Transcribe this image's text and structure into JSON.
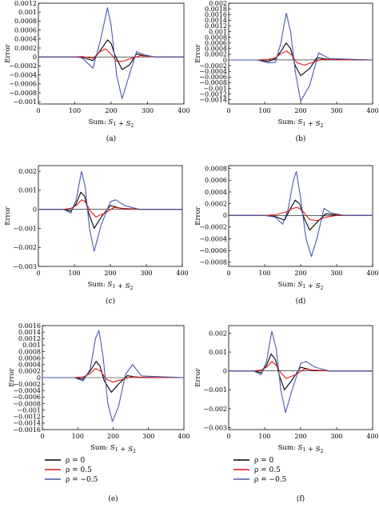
{
  "legend_entries": [
    {
      "label": "ρ = 0",
      "color": "#000000"
    },
    {
      "label": "ρ = 0.5",
      "color": "#e41a1c"
    },
    {
      "label": "ρ = −0.5",
      "color": "#4a5aa8"
    }
  ],
  "chart_data": [
    {
      "type": "line",
      "panel": "(a)",
      "xlabel": "Sum: S1 + S2",
      "ylabel": "Error",
      "xlim": [
        0,
        400
      ],
      "ylim": [
        -0.00105,
        0.0012
      ],
      "xticks": [
        0,
        100,
        200,
        300,
        400
      ],
      "yticks": [
        -0.001,
        -0.0008,
        -0.0006,
        -0.0004,
        -0.0002,
        0,
        0.0002,
        0.0004,
        0.0006,
        0.0008,
        0.001,
        0.0012
      ],
      "ytick_labels": [
        "−0.001",
        "−0.0008",
        "−0.0006",
        "−0.0004",
        "−0.0002",
        "0",
        "0.0002",
        "0.0004",
        "0.0006",
        "0.0008",
        "0.001",
        "0.0012"
      ],
      "grid": false,
      "series": [
        {
          "name": "ρ = 0",
          "color": "#000000",
          "x": [
            0,
            100,
            120,
            150,
            170,
            190,
            200,
            210,
            230,
            250,
            270,
            290,
            320,
            400
          ],
          "y": [
            0,
            0,
            -1e-05,
            -8e-05,
            0.00014,
            0.00038,
            0.0003,
            5e-05,
            -0.00028,
            -0.00018,
            7e-05,
            3e-05,
            0.0,
            0
          ]
        },
        {
          "name": "ρ = 0.5",
          "color": "#e41a1c",
          "x": [
            0,
            100,
            120,
            150,
            170,
            185,
            200,
            215,
            235,
            260,
            280,
            320,
            400
          ],
          "y": [
            0,
            0,
            1e-05,
            -3e-05,
            0.00012,
            0.00018,
            6e-05,
            -0.0001,
            -9e-05,
            -2e-05,
            3e-05,
            0.0,
            0
          ]
        },
        {
          "name": "ρ = −0.5",
          "color": "#4a5aa8",
          "x": [
            0,
            100,
            120,
            150,
            170,
            190,
            200,
            215,
            230,
            250,
            270,
            290,
            320,
            400
          ],
          "y": [
            0,
            0,
            -2e-05,
            -0.00025,
            0.00035,
            0.0011,
            0.0007,
            -0.0004,
            -0.00093,
            -0.0004,
            0.00012,
            5e-05,
            0.0,
            0
          ]
        }
      ]
    },
    {
      "type": "line",
      "panel": "(b)",
      "xlabel": "Sum: S1 + S2",
      "ylabel": "Error",
      "xlim": [
        0,
        400
      ],
      "ylim": [
        -0.00155,
        0.002
      ],
      "xticks": [
        0,
        100,
        200,
        300,
        400
      ],
      "yticks": [
        -0.0014,
        -0.0012,
        -0.001,
        -0.0008,
        -0.0006,
        -0.0004,
        -0.0002,
        0,
        0.0002,
        0.0004,
        0.0006,
        0.0008,
        0.001,
        0.0012,
        0.0014,
        0.0016,
        0.0018,
        0.002
      ],
      "ytick_labels": [
        "−0.0014",
        "−0.0012",
        "−0.001",
        "−0.0008",
        "−0.0006",
        "−0.0004",
        "−0.0002",
        "0",
        "0.0002",
        "0.0004",
        "0.0006",
        "0.0008",
        "0.001",
        "0.0012",
        "0.0014",
        "0.0016",
        "0.0018",
        "0.002"
      ],
      "grid": false,
      "series": [
        {
          "name": "ρ = 0",
          "color": "#000000",
          "x": [
            0,
            80,
            110,
            130,
            145,
            160,
            172,
            185,
            200,
            225,
            245,
            280,
            400
          ],
          "y": [
            0,
            0,
            -5e-05,
            5e-05,
            0.0003,
            0.0006,
            0.0004,
            -0.0002,
            -0.00055,
            -0.0003,
            8e-05,
            2e-05,
            0
          ]
        },
        {
          "name": "ρ = 0.5",
          "color": "#e41a1c",
          "x": [
            0,
            80,
            110,
            130,
            145,
            160,
            175,
            190,
            210,
            235,
            260,
            300,
            400
          ],
          "y": [
            0,
            0,
            2e-05,
            8e-05,
            0.00022,
            0.00032,
            0.00018,
            -0.0001,
            -0.00018,
            -8e-05,
            3e-05,
            1e-05,
            0
          ]
        },
        {
          "name": "ρ = −0.5",
          "color": "#4a5aa8",
          "x": [
            0,
            80,
            110,
            130,
            145,
            160,
            172,
            185,
            200,
            225,
            250,
            280,
            400
          ],
          "y": [
            0,
            0,
            -0.0001,
            -8e-05,
            0.0006,
            0.00165,
            0.001,
            -0.0004,
            -0.00145,
            -0.0009,
            0.00025,
            5e-05,
            0
          ]
        }
      ]
    },
    {
      "type": "line",
      "panel": "(c)",
      "xlabel": "Sum: S1 + S2",
      "ylabel": "Error",
      "xlim": [
        0,
        400
      ],
      "ylim": [
        -0.003,
        0.0023
      ],
      "xticks": [
        0,
        100,
        200,
        300,
        400
      ],
      "yticks": [
        -0.003,
        -0.002,
        -0.001,
        0,
        0.001,
        0.002
      ],
      "ytick_labels": [
        "−0.003",
        "−0.002",
        "−0.001",
        "0",
        "0.001",
        "0.002"
      ],
      "grid": false,
      "series": [
        {
          "name": "ρ = 0",
          "color": "#000000",
          "x": [
            0,
            70,
            90,
            105,
            118,
            128,
            140,
            155,
            175,
            200,
            230,
            280,
            400
          ],
          "y": [
            0,
            0,
            -0.0001,
            0.0003,
            0.0009,
            0.0007,
            -0.0002,
            -0.001,
            -0.0004,
            0.0002,
            5e-05,
            0.0,
            0
          ]
        },
        {
          "name": "ρ = 0.5",
          "color": "#e41a1c",
          "x": [
            0,
            70,
            90,
            105,
            120,
            130,
            145,
            160,
            185,
            210,
            240,
            290,
            400
          ],
          "y": [
            0,
            0,
            5e-05,
            0.0002,
            0.0005,
            0.0004,
            -0.0001,
            -0.0004,
            -0.0002,
            0.0001,
            4e-05,
            0.0,
            0
          ]
        },
        {
          "name": "ρ = −0.5",
          "color": "#4a5aa8",
          "x": [
            0,
            70,
            90,
            105,
            120,
            130,
            142,
            155,
            175,
            200,
            215,
            240,
            280,
            400
          ],
          "y": [
            0,
            0,
            -0.0002,
            0.0005,
            0.002,
            0.0012,
            -0.001,
            -0.0022,
            -0.0008,
            0.0004,
            0.0005,
            0.0002,
            0.0,
            0
          ]
        }
      ]
    },
    {
      "type": "line",
      "panel": "(d)",
      "xlabel": "Sum: S1 + S2",
      "ylabel": "Error",
      "xlim": [
        0,
        400
      ],
      "ylim": [
        -0.00087,
        0.00085
      ],
      "xticks": [
        0,
        100,
        200,
        300,
        400
      ],
      "yticks": [
        -0.0008,
        -0.0006,
        -0.0004,
        -0.0002,
        0,
        0.0002,
        0.0004,
        0.0006,
        0.0008
      ],
      "ytick_labels": [
        "−0.0008",
        "−0.0006",
        "−0.0004",
        "−0.0002",
        "0",
        "0.0002",
        "0.0004",
        "0.0006",
        "0.0008"
      ],
      "grid": false,
      "series": [
        {
          "name": "ρ = 0",
          "color": "#000000",
          "x": [
            0,
            100,
            130,
            155,
            170,
            185,
            197,
            210,
            225,
            245,
            270,
            310,
            400
          ],
          "y": [
            0,
            0,
            -2e-05,
            -8e-05,
            0.0001,
            0.00026,
            0.0002,
            -5e-05,
            -0.00025,
            -0.00012,
            3e-05,
            0.0,
            0
          ]
        },
        {
          "name": "ρ = 0.5",
          "color": "#e41a1c",
          "x": [
            0,
            100,
            130,
            160,
            175,
            190,
            205,
            225,
            245,
            270,
            300,
            400
          ],
          "y": [
            0,
            0,
            1e-05,
            6e-05,
            0.00011,
            0.00014,
            8e-05,
            -7e-05,
            -9e-05,
            -3e-05,
            0.0,
            0
          ]
        },
        {
          "name": "ρ = −0.5",
          "color": "#4a5aa8",
          "x": [
            0,
            100,
            130,
            150,
            165,
            180,
            188,
            200,
            215,
            230,
            245,
            265,
            285,
            320,
            400
          ],
          "y": [
            0,
            0,
            -3e-05,
            -0.00015,
            0.0001,
            0.0006,
            0.00075,
            0.0003,
            -0.0004,
            -0.0007,
            -0.0004,
            0.00012,
            4e-05,
            0.0,
            0
          ]
        }
      ]
    },
    {
      "type": "line",
      "panel": "(e)",
      "xlabel": "Sum: S1 + S2",
      "ylabel": "Error",
      "xlim": [
        0,
        400
      ],
      "ylim": [
        -0.0016,
        0.0016
      ],
      "xticks": [
        0,
        100,
        200,
        300,
        400
      ],
      "yticks": [
        -0.0016,
        -0.0014,
        -0.0012,
        -0.001,
        -0.0008,
        -0.0006,
        -0.0004,
        -0.0002,
        0,
        0.0002,
        0.0004,
        0.0006,
        0.0008,
        0.001,
        0.0012,
        0.0014,
        0.0016
      ],
      "ytick_labels": [
        "−0.0016",
        "−0.0014",
        "−0.0012",
        "−0.001",
        "−0.0008",
        "−0.0006",
        "−0.0004",
        "−0.0002",
        "0",
        "0.0002",
        "0.0004",
        "0.0006",
        "0.0008",
        "0.001",
        "0.0012",
        "0.0014",
        "0.0016"
      ],
      "grid": false,
      "series": [
        {
          "name": "ρ = 0",
          "color": "#000000",
          "x": [
            0,
            90,
            115,
            135,
            152,
            163,
            175,
            195,
            215,
            240,
            270,
            400
          ],
          "y": [
            0,
            0,
            -5e-05,
            0.0002,
            0.0005,
            0.00035,
            -0.0001,
            -0.00045,
            -0.0002,
            6e-05,
            1e-05,
            0
          ]
        },
        {
          "name": "ρ = 0.5",
          "color": "#e41a1c",
          "x": [
            0,
            90,
            115,
            135,
            150,
            165,
            180,
            200,
            225,
            255,
            290,
            400
          ],
          "y": [
            0,
            0,
            2e-05,
            0.00012,
            0.00028,
            0.0002,
            -4e-05,
            -0.00014,
            -6e-05,
            3e-05,
            0.0,
            0
          ]
        },
        {
          "name": "ρ = −0.5",
          "color": "#4a5aa8",
          "x": [
            0,
            90,
            115,
            135,
            150,
            160,
            172,
            185,
            198,
            215,
            235,
            255,
            280,
            400
          ],
          "y": [
            0,
            0,
            -0.0001,
            0.00025,
            0.0012,
            0.00145,
            0.0006,
            -0.0008,
            -0.00135,
            -0.0009,
            0.0001,
            0.0004,
            5e-05,
            0
          ]
        }
      ]
    },
    {
      "type": "line",
      "panel": "(f)",
      "xlabel": "Sum: S1 + S2",
      "ylabel": "Error",
      "xlim": [
        0,
        400
      ],
      "ylim": [
        -0.0031,
        0.0024
      ],
      "xticks": [
        0,
        100,
        200,
        300,
        400
      ],
      "yticks": [
        -0.003,
        -0.002,
        -0.001,
        0,
        0.001,
        0.002
      ],
      "ytick_labels": [
        "−0.003",
        "−0.002",
        "−0.001",
        "0",
        "0.001",
        "0.002"
      ],
      "grid": false,
      "series": [
        {
          "name": "ρ = 0",
          "color": "#000000",
          "x": [
            0,
            70,
            90,
            105,
            118,
            130,
            142,
            155,
            175,
            200,
            230,
            280,
            400
          ],
          "y": [
            0,
            0,
            -0.0001,
            0.0003,
            0.0009,
            0.0006,
            -0.0003,
            -0.001,
            -0.0005,
            0.0002,
            5e-05,
            0.0,
            0
          ]
        },
        {
          "name": "ρ = 0.5",
          "color": "#e41a1c",
          "x": [
            0,
            70,
            90,
            105,
            120,
            132,
            145,
            160,
            185,
            210,
            240,
            290,
            400
          ],
          "y": [
            0,
            0,
            5e-05,
            0.0002,
            0.0005,
            0.0003,
            -0.0001,
            -0.0004,
            -0.0002,
            0.0001,
            4e-05,
            0.0,
            0
          ]
        },
        {
          "name": "ρ = −0.5",
          "color": "#4a5aa8",
          "x": [
            0,
            70,
            90,
            105,
            120,
            132,
            145,
            158,
            178,
            200,
            215,
            240,
            280,
            400
          ],
          "y": [
            0,
            0,
            -0.0002,
            0.0005,
            0.0021,
            0.0012,
            -0.001,
            -0.0022,
            -0.0009,
            0.0004,
            0.0005,
            0.0002,
            0.0,
            0
          ]
        }
      ]
    }
  ]
}
